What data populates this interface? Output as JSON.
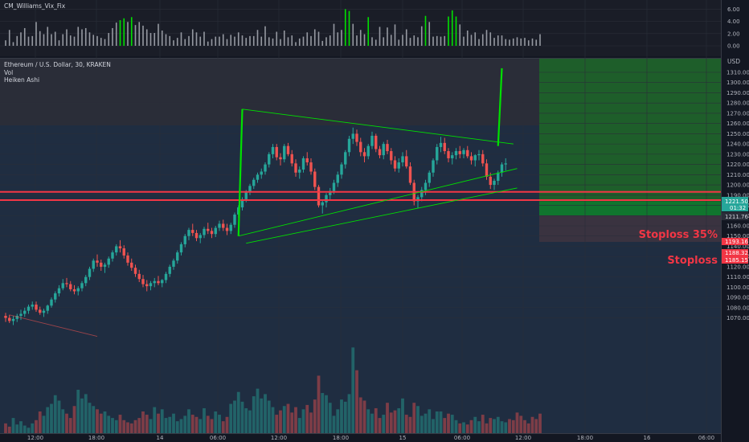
{
  "indicator": {
    "title": "CM_Williams_Vix_Fix",
    "ticks": [
      "6.00",
      "4.00",
      "2.00",
      "0.00"
    ]
  },
  "legend": {
    "symbol": "Ethereum / U.S. Dollar, 30, KRAKEN",
    "vol": "Vol",
    "style": "Heiken Ashi"
  },
  "price_axis": {
    "currency": "USD",
    "ticks": [
      "1310.00",
      "1300.00",
      "1290.00",
      "1280.00",
      "1270.00",
      "1260.00",
      "1250.00",
      "1240.00",
      "1230.00",
      "1220.00",
      "1210.00",
      "1200.00",
      "1190.00",
      "1180.00",
      "1170.00",
      "1160.00",
      "1150.00",
      "1140.00",
      "1130.00",
      "1120.00",
      "1110.00",
      "1100.00",
      "1090.00",
      "1080.00",
      "1070.00"
    ]
  },
  "badges": {
    "last_price": "1221.50",
    "countdown": "01:32",
    "entry": "1211.76",
    "stop35": "1193.16",
    "stop_mid": "1188.32",
    "stop": "1185.15"
  },
  "annotations": {
    "stoploss35": "Stoploss 35%",
    "stoploss": "Stoploss"
  },
  "time_axis": [
    "12:00",
    "18:00",
    "14",
    "06:00",
    "12:00",
    "18:00",
    "15",
    "06:00",
    "12:00",
    "18:00",
    "16",
    "06:00"
  ],
  "colors": {
    "bg": "#131722",
    "up": "#26a69a",
    "down": "#ef5350",
    "stop_line": "#f23645",
    "target": "#1e5e2a",
    "trend": "#00e000"
  },
  "chart_data": {
    "type": "candlestick",
    "symbol": "Ethereum / U.S. Dollar",
    "interval": "30",
    "exchange": "KRAKEN",
    "ylim": [
      1063,
      1318
    ],
    "vix_fix": {
      "ylim": [
        0,
        7
      ],
      "values": [
        0.9,
        2.6,
        0.6,
        1.6,
        2.2,
        2.9,
        1.5,
        1.6,
        3.9,
        2.4,
        1.9,
        3.1,
        1.9,
        2.3,
        0.9,
        1.9,
        2.7,
        1.7,
        1.5,
        3.1,
        2.7,
        2.9,
        2.2,
        1.8,
        1.6,
        1.3,
        1.1,
        2.1,
        2.9,
        3.8,
        4.2,
        4.5,
        3.9,
        4.7,
        3.4,
        3.9,
        3.3,
        2.7,
        2.1,
        2.1,
        3.6,
        2.5,
        1.9,
        1.6,
        0.9,
        1.3,
        2.2,
        1.1,
        1.6,
        2.7,
        2.2,
        1.5,
        2.3,
        0.7,
        1.1,
        1.5,
        1.5,
        1.9,
        1.1,
        1.8,
        1.5,
        2.2,
        1.7,
        1.3,
        1.6,
        1.6,
        2.6,
        1.5,
        3.2,
        1.4,
        1.2,
        2.3,
        1.1,
        2.5,
        1.4,
        1.7,
        0.6,
        1.2,
        1.5,
        2.2,
        1.6,
        2.7,
        2.3,
        0.8,
        1.4,
        1.7,
        3.6,
        2.2,
        2.6,
        6.0,
        5.7,
        3.6,
        1.7,
        2.6,
        1.9,
        4.7,
        1.4,
        1.0,
        3.1,
        1.4,
        3.0,
        1.8,
        3.5,
        1.0,
        1.8,
        2.7,
        1.3,
        1.7,
        1.4,
        3.2,
        4.9,
        3.9,
        1.5,
        1.6,
        1.5,
        1.6,
        4.8,
        5.8,
        4.8,
        3.5,
        1.5,
        2.5,
        1.8,
        2.2,
        1.1,
        1.9,
        2.6,
        2.2,
        1.3,
        1.7,
        1.7,
        1.1,
        1.0,
        1.2,
        1.4,
        1.2,
        1.3,
        0.9,
        1.2,
        1.0,
        1.9
      ]
    },
    "candles": {
      "fields": [
        "open",
        "high",
        "low",
        "close"
      ],
      "values": [
        [
          1072,
          1075,
          1066,
          1070
        ],
        [
          1070,
          1073,
          1065,
          1067
        ],
        [
          1067,
          1072,
          1063,
          1069
        ],
        [
          1069,
          1074,
          1066,
          1072
        ],
        [
          1072,
          1078,
          1068,
          1074
        ],
        [
          1074,
          1080,
          1071,
          1077
        ],
        [
          1077,
          1083,
          1074,
          1081
        ],
        [
          1081,
          1086,
          1078,
          1083
        ],
        [
          1083,
          1086,
          1076,
          1078
        ],
        [
          1078,
          1081,
          1073,
          1075
        ],
        [
          1075,
          1079,
          1071,
          1077
        ],
        [
          1077,
          1083,
          1074,
          1082
        ],
        [
          1082,
          1090,
          1080,
          1088
        ],
        [
          1088,
          1096,
          1085,
          1094
        ],
        [
          1094,
          1102,
          1091,
          1099
        ],
        [
          1099,
          1108,
          1097,
          1104
        ],
        [
          1104,
          1109,
          1100,
          1103
        ],
        [
          1103,
          1106,
          1096,
          1098
        ],
        [
          1098,
          1102,
          1093,
          1096
        ],
        [
          1096,
          1101,
          1092,
          1099
        ],
        [
          1099,
          1106,
          1096,
          1104
        ],
        [
          1104,
          1112,
          1101,
          1110
        ],
        [
          1110,
          1120,
          1107,
          1118
        ],
        [
          1118,
          1128,
          1115,
          1126
        ],
        [
          1126,
          1132,
          1120,
          1124
        ],
        [
          1124,
          1127,
          1116,
          1120
        ],
        [
          1120,
          1124,
          1114,
          1122
        ],
        [
          1122,
          1130,
          1119,
          1128
        ],
        [
          1128,
          1136,
          1125,
          1134
        ],
        [
          1134,
          1142,
          1131,
          1140
        ],
        [
          1140,
          1146,
          1134,
          1138
        ],
        [
          1138,
          1141,
          1128,
          1131
        ],
        [
          1131,
          1134,
          1121,
          1124
        ],
        [
          1124,
          1128,
          1116,
          1119
        ],
        [
          1119,
          1122,
          1110,
          1113
        ],
        [
          1113,
          1117,
          1105,
          1108
        ],
        [
          1108,
          1112,
          1100,
          1103
        ],
        [
          1103,
          1107,
          1096,
          1101
        ],
        [
          1101,
          1106,
          1097,
          1104
        ],
        [
          1104,
          1109,
          1100,
          1106
        ],
        [
          1106,
          1111,
          1102,
          1104
        ],
        [
          1104,
          1108,
          1100,
          1107
        ],
        [
          1107,
          1115,
          1104,
          1113
        ],
        [
          1113,
          1122,
          1110,
          1120
        ],
        [
          1120,
          1128,
          1117,
          1126
        ],
        [
          1126,
          1136,
          1123,
          1134
        ],
        [
          1134,
          1144,
          1131,
          1142
        ],
        [
          1142,
          1152,
          1139,
          1150
        ],
        [
          1150,
          1158,
          1146,
          1156
        ],
        [
          1156,
          1162,
          1150,
          1153
        ],
        [
          1153,
          1156,
          1145,
          1148
        ],
        [
          1148,
          1153,
          1143,
          1151
        ],
        [
          1151,
          1159,
          1148,
          1157
        ],
        [
          1157,
          1163,
          1152,
          1155
        ],
        [
          1155,
          1158,
          1148,
          1152
        ],
        [
          1152,
          1160,
          1149,
          1158
        ],
        [
          1158,
          1165,
          1155,
          1162
        ],
        [
          1162,
          1166,
          1155,
          1158
        ],
        [
          1158,
          1162,
          1151,
          1155
        ],
        [
          1155,
          1163,
          1152,
          1161
        ],
        [
          1161,
          1173,
          1158,
          1171
        ],
        [
          1171,
          1180,
          1168,
          1178
        ],
        [
          1178,
          1188,
          1175,
          1186
        ],
        [
          1186,
          1195,
          1183,
          1193
        ],
        [
          1193,
          1201,
          1190,
          1199
        ],
        [
          1199,
          1207,
          1196,
          1205
        ],
        [
          1205,
          1212,
          1202,
          1210
        ],
        [
          1210,
          1216,
          1206,
          1213
        ],
        [
          1213,
          1222,
          1210,
          1220
        ],
        [
          1220,
          1232,
          1217,
          1230
        ],
        [
          1230,
          1240,
          1226,
          1237
        ],
        [
          1237,
          1240,
          1224,
          1227
        ],
        [
          1227,
          1231,
          1219,
          1225
        ],
        [
          1225,
          1240,
          1222,
          1238
        ],
        [
          1238,
          1241,
          1228,
          1230
        ],
        [
          1230,
          1234,
          1218,
          1221
        ],
        [
          1221,
          1225,
          1208,
          1212
        ],
        [
          1212,
          1218,
          1206,
          1215
        ],
        [
          1215,
          1228,
          1212,
          1226
        ],
        [
          1226,
          1232,
          1219,
          1222
        ],
        [
          1222,
          1226,
          1210,
          1213
        ],
        [
          1213,
          1216,
          1195,
          1198
        ],
        [
          1198,
          1200,
          1178,
          1180
        ],
        [
          1180,
          1185,
          1172,
          1183
        ],
        [
          1183,
          1192,
          1178,
          1190
        ],
        [
          1190,
          1197,
          1185,
          1194
        ],
        [
          1194,
          1205,
          1191,
          1202
        ],
        [
          1202,
          1213,
          1198,
          1210
        ],
        [
          1210,
          1222,
          1206,
          1220
        ],
        [
          1220,
          1234,
          1216,
          1232
        ],
        [
          1232,
          1248,
          1228,
          1245
        ],
        [
          1245,
          1256,
          1240,
          1250
        ],
        [
          1250,
          1254,
          1238,
          1242
        ],
        [
          1242,
          1246,
          1228,
          1232
        ],
        [
          1232,
          1236,
          1222,
          1228
        ],
        [
          1228,
          1240,
          1225,
          1238
        ],
        [
          1238,
          1252,
          1235,
          1248
        ],
        [
          1248,
          1250,
          1232,
          1235
        ],
        [
          1235,
          1238,
          1226,
          1229
        ],
        [
          1229,
          1242,
          1225,
          1240
        ],
        [
          1240,
          1244,
          1230,
          1233
        ],
        [
          1233,
          1236,
          1220,
          1224
        ],
        [
          1224,
          1228,
          1213,
          1216
        ],
        [
          1216,
          1226,
          1212,
          1222
        ],
        [
          1222,
          1232,
          1218,
          1228
        ],
        [
          1228,
          1234,
          1216,
          1218
        ],
        [
          1218,
          1222,
          1200,
          1202
        ],
        [
          1202,
          1205,
          1180,
          1184
        ],
        [
          1184,
          1190,
          1177,
          1188
        ],
        [
          1188,
          1198,
          1184,
          1195
        ],
        [
          1195,
          1205,
          1190,
          1202
        ],
        [
          1202,
          1214,
          1198,
          1212
        ],
        [
          1212,
          1226,
          1208,
          1224
        ],
        [
          1224,
          1240,
          1220,
          1237
        ],
        [
          1237,
          1247,
          1232,
          1241
        ],
        [
          1241,
          1246,
          1230,
          1233
        ],
        [
          1233,
          1236,
          1222,
          1226
        ],
        [
          1226,
          1232,
          1220,
          1229
        ],
        [
          1229,
          1236,
          1225,
          1233
        ],
        [
          1233,
          1238,
          1226,
          1230
        ],
        [
          1230,
          1236,
          1226,
          1234
        ],
        [
          1234,
          1238,
          1226,
          1228
        ],
        [
          1228,
          1232,
          1220,
          1224
        ],
        [
          1224,
          1230,
          1218,
          1229
        ],
        [
          1229,
          1234,
          1224,
          1230
        ],
        [
          1230,
          1234,
          1218,
          1221
        ],
        [
          1221,
          1225,
          1205,
          1208
        ],
        [
          1208,
          1212,
          1196,
          1200
        ],
        [
          1200,
          1206,
          1195,
          1204
        ],
        [
          1204,
          1214,
          1200,
          1212
        ],
        [
          1212,
          1222,
          1208,
          1220
        ],
        [
          1220,
          1226,
          1214,
          1221
        ]
      ]
    },
    "volume": {
      "values": [
        9,
        6,
        14,
        8,
        11,
        7,
        5,
        9,
        12,
        20,
        16,
        24,
        27,
        35,
        30,
        22,
        18,
        14,
        25,
        40,
        32,
        36,
        28,
        25,
        22,
        18,
        20,
        16,
        14,
        12,
        17,
        12,
        10,
        9,
        12,
        14,
        20,
        17,
        13,
        24,
        18,
        22,
        14,
        15,
        18,
        11,
        13,
        16,
        22,
        17,
        15,
        13,
        23,
        16,
        13,
        20,
        17,
        11,
        15,
        27,
        30,
        38,
        29,
        23,
        21,
        34,
        41,
        32,
        36,
        30,
        24,
        17,
        21,
        25,
        27,
        19,
        24,
        14,
        22,
        26,
        19,
        31,
        53,
        37,
        35,
        28,
        16,
        22,
        31,
        29,
        36,
        79,
        58,
        33,
        30,
        22,
        18,
        23,
        14,
        17,
        28,
        19,
        21,
        23,
        32,
        17,
        15,
        28,
        25,
        16,
        18,
        22,
        13,
        20,
        20,
        14,
        18,
        17,
        12,
        9,
        10,
        8,
        12,
        15,
        11,
        17,
        9,
        14,
        13,
        15,
        11,
        10,
        13,
        12,
        19,
        16,
        12,
        9,
        15,
        13,
        18
      ]
    },
    "levels": {
      "stoploss_35": 1193.16,
      "stoploss": 1185.15,
      "entry": 1211.76,
      "target": 1314
    },
    "trendlines": [
      {
        "from": [
          1,
          1073
        ],
        "to": [
          24,
          1052
        ]
      },
      {
        "from": [
          61,
          1150
        ],
        "to": [
          62,
          1274
        ]
      },
      {
        "from": [
          62,
          1274
        ],
        "to": [
          133,
          1240
        ]
      },
      {
        "from": [
          61,
          1150
        ],
        "to": [
          134,
          1216
        ]
      },
      {
        "from": [
          63,
          1143
        ],
        "to": [
          134,
          1197
        ]
      },
      {
        "from": [
          129,
          1238
        ],
        "to": [
          130,
          1314
        ]
      }
    ],
    "grid": true
  }
}
